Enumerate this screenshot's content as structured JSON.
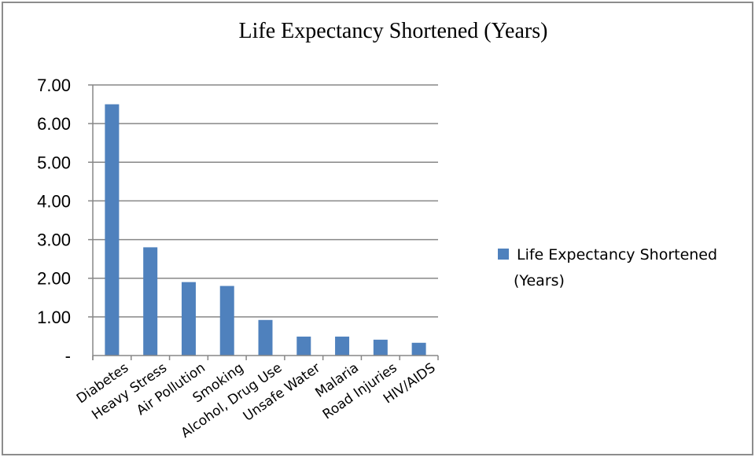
{
  "chart_data": {
    "type": "bar",
    "title": "Life Expectancy Shortened (Years)",
    "xlabel": "",
    "ylabel": "",
    "categories": [
      "Diabetes",
      "Heavy Stress",
      "Air Pollution",
      "Smoking",
      "Alcohol, Drug Use",
      "Unsafe Water",
      "Malaria",
      "Road Injuries",
      "HIV/AIDS"
    ],
    "series": [
      {
        "name": "Life Expectancy Shortened (Years)",
        "values": [
          6.5,
          2.8,
          1.9,
          1.8,
          0.92,
          0.49,
          0.49,
          0.41,
          0.33
        ],
        "color": "#4f81bd"
      }
    ],
    "ylim": [
      0,
      7
    ],
    "yticks": [
      0,
      1,
      2,
      3,
      4,
      5,
      6,
      7
    ],
    "ytick_labels": [
      "-",
      "1.00",
      "2.00",
      "3.00",
      "4.00",
      "5.00",
      "6.00",
      "7.00"
    ],
    "grid": true,
    "legend": {
      "position": "right",
      "lines": [
        "Life Expectancy Shortened",
        "(Years)"
      ]
    },
    "colors": {
      "bar": "#4f81bd",
      "gridline": "#878787",
      "axis": "#878787"
    }
  }
}
